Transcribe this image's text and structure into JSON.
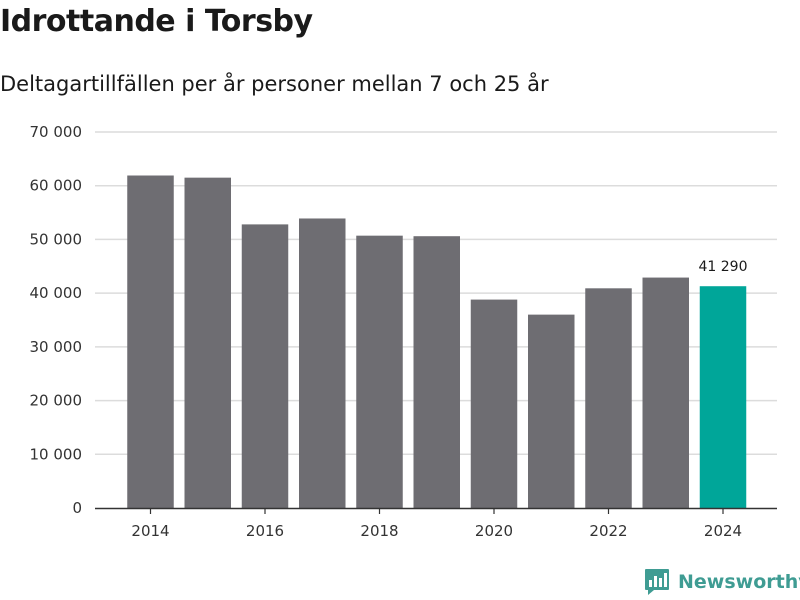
{
  "title": "Idrottande i Torsby",
  "subtitle": "Deltagartillfällen per år personer mellan 7 och 25 år",
  "brand": {
    "name": "Newsworthy",
    "icon": "bar-chart-logo-icon"
  },
  "colors": {
    "bar": "#6e6d72",
    "highlight": "#00a699",
    "grid": "#dcdcdc",
    "axis": "#333333",
    "brand": "#3f9c93"
  },
  "chart_data": {
    "type": "bar",
    "title": "Idrottande i Torsby",
    "subtitle": "Deltagartillfällen per år personer mellan 7 och 25 år",
    "xlabel": "",
    "ylabel": "",
    "categories": [
      2014,
      2015,
      2016,
      2017,
      2018,
      2019,
      2020,
      2021,
      2022,
      2023,
      2024
    ],
    "values": [
      61900,
      61500,
      52800,
      53900,
      50700,
      50600,
      38800,
      36000,
      40900,
      42900,
      41290
    ],
    "highlight_index": 10,
    "highlight_label": "41 290",
    "x_tick_labels": [
      "2014",
      "2016",
      "2018",
      "2020",
      "2022",
      "2024"
    ],
    "y_ticks": [
      0,
      10000,
      20000,
      30000,
      40000,
      50000,
      60000,
      70000
    ],
    "y_tick_labels": [
      "0",
      "10 000",
      "20 000",
      "30 000",
      "40 000",
      "50 000",
      "60 000",
      "70 000"
    ],
    "ylim": [
      0,
      70000
    ],
    "grid": true,
    "legend": "none"
  }
}
